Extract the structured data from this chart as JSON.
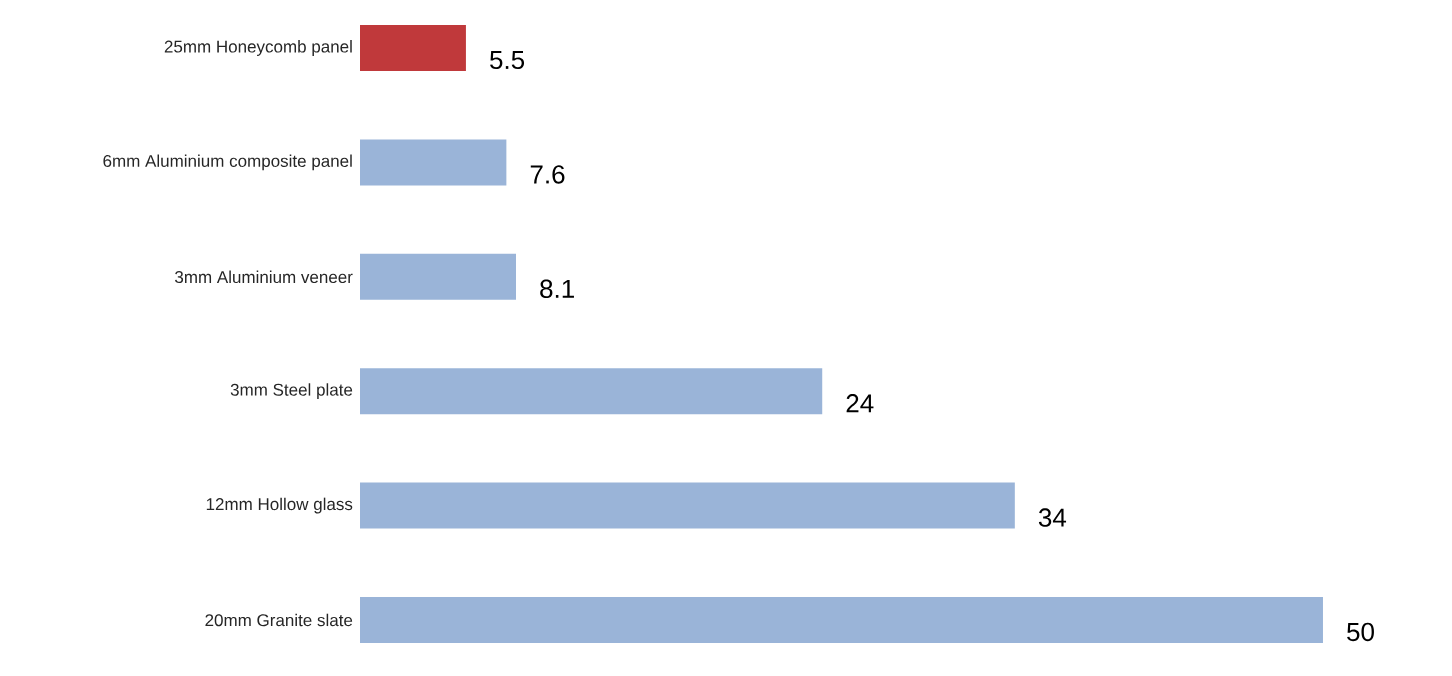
{
  "chart_data": {
    "type": "bar",
    "orientation": "horizontal",
    "data_labels": true,
    "categories": [
      "25mm Honeycomb panel",
      "6mm Aluminium composite panel",
      "3mm Aluminium veneer",
      "3mm Steel plate",
      "12mm Hollow glass",
      "20mm Granite slate"
    ],
    "values": [
      5.5,
      7.6,
      8.1,
      24,
      34,
      50
    ],
    "colors": [
      "#c0393b",
      "#9ab4d8",
      "#9ab4d8",
      "#9ab4d8",
      "#9ab4d8",
      "#9ab4d8"
    ]
  }
}
